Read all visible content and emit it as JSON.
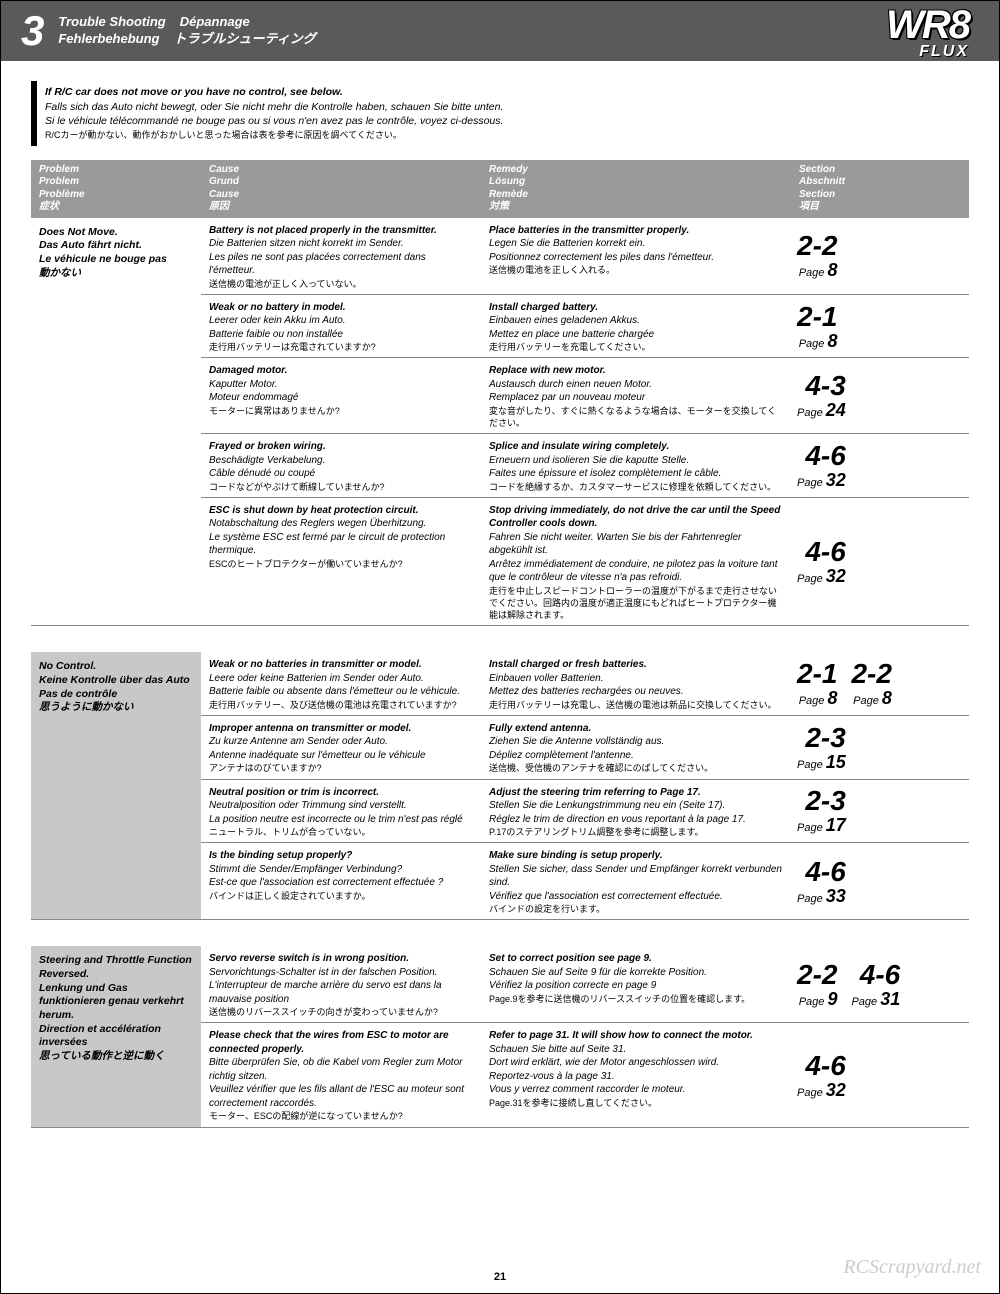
{
  "header": {
    "num": "3",
    "t1": "Trouble Shooting",
    "t2": "Dépannage",
    "t3": "Fehlerbehebung",
    "t4": "トラブルシューティング",
    "logo1": "WR8",
    "logo2": "FLUX"
  },
  "intro": {
    "l1": "If R/C car does not move or you have no control, see below.",
    "l2": "Falls sich das Auto nicht bewegt, oder Sie nicht mehr die Kontrolle haben, schauen Sie bitte unten.",
    "l3": "Si le véhicule télécommandé ne bouge pas ou si vous n'en avez pas le contrôle, voyez ci-dessous.",
    "l4": "R/Cカーが動かない、動作がおかしいと思った場合は表を参考に原因を調べてください。"
  },
  "colhead": {
    "problem": "Problem\nProblem\nProblème\n症状",
    "cause": "Cause\nGrund\nCause\n原因",
    "remedy": "Remedy\nLösung\nRemède\n対策",
    "section": "Section\nAbschnitt\nSection\n項目"
  },
  "groups": [
    {
      "shaded": false,
      "problem": "Does Not Move.\nDas Auto fährt nicht.\nLe véhicule ne bouge pas\n動かない",
      "rows": [
        {
          "cause": "Battery is not placed properly in the transmitter.\nDie Batterien sitzen nicht korrekt im Sender.\nLes piles ne sont pas placées correctement dans l'émetteur.\n送信機の電池が正しく入っていない。",
          "remedy": "Place batteries in the transmitter properly.\nLegen Sie die Batterien korrekt ein.\nPositionnez correctement les piles dans l'émetteur.\n送信機の電池を正しく入れる。",
          "sections": [
            {
              "num": "2-2",
              "page": "8"
            }
          ]
        },
        {
          "cause": "Weak or no battery in model.\nLeerer oder kein Akku im Auto.\nBatterie faible ou non installée\n走行用バッテリーは充電されていますか?",
          "remedy": "Install charged battery.\nEinbauen eines geladenen Akkus.\nMettez en place une batterie chargée\n走行用バッテリーを充電してください。",
          "sections": [
            {
              "num": "2-1",
              "page": "8"
            }
          ]
        },
        {
          "cause": "Damaged motor.\nKaputter Motor.\nMoteur endommagé\nモーターに異常はありませんか?",
          "remedy": "Replace with new motor.\nAustausch durch einen neuen Motor.\nRemplacez par un nouveau moteur\n変な音がしたり、すぐに熱くなるような場合は、モーターを交換してください。",
          "sections": [
            {
              "num": "4-3",
              "page": "24"
            }
          ]
        },
        {
          "cause": "Frayed or broken wiring.\nBeschädigte Verkabelung.\nCâble dénudé ou coupé\nコードなどがやぶけて断線していませんか?",
          "remedy": "Splice and insulate wiring completely.\nErneuern und isolieren Sie die kaputte Stelle.\nFaites une épissure et isolez complètement le câble.\nコードを絶縁するか、カスタマーサービスに修理を依頼してください。",
          "sections": [
            {
              "num": "4-6",
              "page": "32"
            }
          ]
        },
        {
          "cause": "ESC is shut down by heat protection circuit.\nNotabschaltung des Reglers wegen Überhitzung.\nLe système ESC est fermé par le circuit de protection thermique.\nESCのヒートプロテクターが働いていませんか?",
          "remedy": "Stop driving immediately, do not drive the car until the Speed Controller cools down.\nFahren Sie nicht weiter. Warten Sie bis der Fahrtenregler abgekühlt ist.\nArrêtez immédiatement de conduire, ne pilotez pas la voiture tant que le contrôleur de vitesse n'a pas refroidi.\n走行を中止しスピードコントローラーの温度が下がるまで走行させないでください。回路内の温度が適正温度にもどればヒートプロテクター機能は解除されます。",
          "sections": [
            {
              "num": "4-6",
              "page": "32"
            }
          ]
        }
      ]
    },
    {
      "shaded": true,
      "problem": "No Control.\nKeine Kontrolle über das Auto Pas de contrôle\n思うように動かない",
      "rows": [
        {
          "cause": "Weak or no batteries in transmitter or model.\nLeere oder keine Batterien im Sender oder Auto.\nBatterie faible ou absente dans l'émetteur ou le véhicule.\n走行用バッテリー、及び送信機の電池は充電されていますか?",
          "remedy": "Install charged or fresh batteries.\nEinbauen voller Batterien.\nMettez des batteries rechargées ou neuves.\n走行用バッテリーは充電し、送信機の電池は新品に交換してください。",
          "sections": [
            {
              "num": "2-1",
              "page": "8"
            },
            {
              "num": "2-2",
              "page": "8"
            }
          ]
        },
        {
          "cause": "Improper antenna on transmitter or model.\nZu kurze Antenne am Sender oder Auto.\nAntenne inadéquate sur l'émetteur ou le véhicule\nアンテナはのびていますか?",
          "remedy": "Fully extend antenna.\nZiehen Sie die Antenne vollständig aus.\nDépliez complètement l'antenne.\n送信機、受信機のアンテナを確認にのばしてください。",
          "sections": [
            {
              "num": "2-3",
              "page": "15"
            }
          ]
        },
        {
          "cause": "Neutral position or trim is incorrect.\nNeutralposition oder Trimmung sind verstellt.\nLa position neutre est incorrecte ou le trim n'est pas réglé\nニュートラル、トリムが合っていない。",
          "remedy": "Adjust the steering trim referring to Page 17.\nStellen Sie die Lenkungstrimmung neu ein (Seite 17).\nRéglez le trim de direction en vous reportant à la page 17.\nP.17のステアリングトリム調整を参考に調整します。",
          "sections": [
            {
              "num": "2-3",
              "page": "17"
            }
          ]
        },
        {
          "cause": "Is the binding setup properly?\nStimmt die Sender/Empfänger Verbindung?\nEst-ce que l'association est correctement effectuée ?\nバインドは正しく設定されていますか。",
          "remedy": "Make sure binding is setup properly.\nStellen Sie sicher, dass Sender und Empfänger korrekt verbunden sind.\nVérifiez que l'association est correctement effectuée.\nバインドの設定を行います。",
          "sections": [
            {
              "num": "4-6",
              "page": "33"
            }
          ]
        }
      ]
    },
    {
      "shaded": true,
      "problem": "Steering and Throttle Function Reversed.\nLenkung und Gas funktionieren genau verkehrt herum.\nDirection et accélération inversées\n思っている動作と逆に動く",
      "rows": [
        {
          "cause": "Servo reverse switch is in wrong position.\nServorichtungs-Schalter ist in der falschen Position.\nL'interrupteur de marche arrière du servo est dans la mauvaise position\n送信機のリバーススイッチの向きが変わっていませんか?",
          "remedy": "Set to correct position see page 9.\nSchauen Sie auf Seite 9 für die korrekte Position.\nVérifiez la position correcte en page 9\nPage.9を参考に送信機のリバーススイッチの位置を確認します。",
          "sections": [
            {
              "num": "2-2",
              "page": "9"
            },
            {
              "num": "4-6",
              "page": "31"
            }
          ]
        },
        {
          "cause": "Please check that the wires from ESC to motor are connected properly.\nBitte überprüfen Sie, ob die Kabel vom Regler zum Motor richtig sitzen.\nVeuillez vérifier que les fils allant de l'ESC au moteur sont correctement raccordés.\nモーター、ESCの配線が逆になっていませんか?",
          "remedy": "Refer to page 31. It will show how to connect the motor.\nSchauen Sie bitte auf Seite 31.\nDort wird erklärt, wie der Motor angeschlossen wird.\nReportez-vous à la page 31.\nVous y verrez comment raccorder le moteur.\nPage.31を参考に接続し直してください。",
          "sections": [
            {
              "num": "4-6",
              "page": "32"
            }
          ]
        }
      ]
    }
  ],
  "pagenum": "21",
  "watermark": "RCScrapyard.net"
}
